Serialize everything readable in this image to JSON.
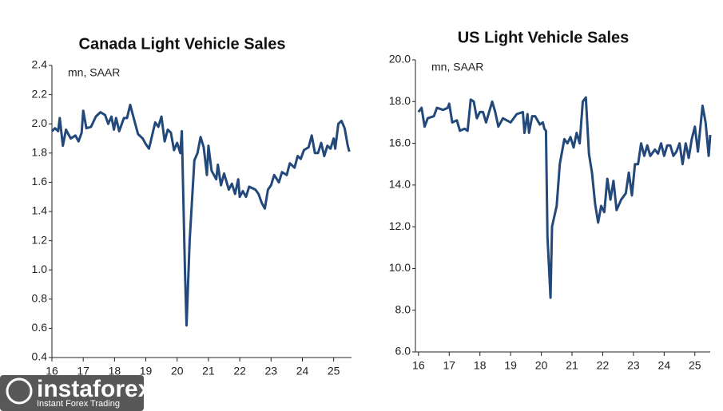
{
  "chart_data": [
    {
      "type": "line",
      "title": "Canada Light Vehicle Sales",
      "unit": "mn, SAAR",
      "color": "#23497a",
      "xlim": [
        16,
        25.57
      ],
      "xticks": [
        16,
        17,
        18,
        19,
        20,
        21,
        22,
        23,
        24,
        25
      ],
      "ylim": [
        0.4,
        2.4
      ],
      "yticks": [
        0.4,
        0.6,
        0.8,
        {
          "value": 1,
          "label": "1.0"
        },
        1.2,
        1.4,
        1.6,
        1.8,
        {
          "value": 2,
          "label": "2.0"
        },
        2.2,
        2.4
      ],
      "x": [
        16.0,
        16.1,
        16.2,
        16.25,
        16.35,
        16.45,
        16.6,
        16.75,
        16.85,
        16.95,
        17.0,
        17.1,
        17.25,
        17.4,
        17.55,
        17.7,
        17.8,
        17.9,
        17.98,
        18.05,
        18.15,
        18.3,
        18.4,
        18.5,
        18.65,
        18.75,
        18.9,
        19.0,
        19.1,
        19.2,
        19.3,
        19.4,
        19.5,
        19.6,
        19.7,
        19.8,
        19.9,
        20.0,
        20.1,
        20.15,
        20.25,
        20.3,
        20.4,
        20.55,
        20.65,
        20.75,
        20.85,
        20.95,
        21.0,
        21.1,
        21.25,
        21.3,
        21.4,
        21.5,
        21.65,
        21.75,
        21.85,
        21.95,
        22.0,
        22.1,
        22.2,
        22.3,
        22.5,
        22.6,
        22.7,
        22.8,
        22.9,
        23.0,
        23.1,
        23.25,
        23.35,
        23.5,
        23.6,
        23.75,
        23.85,
        23.95,
        24.05,
        24.2,
        24.3,
        24.4,
        24.5,
        24.6,
        24.7,
        24.8,
        24.9,
        25.0,
        25.05,
        25.15,
        25.25,
        25.35,
        25.45,
        25.5
      ],
      "values": [
        1.95,
        1.97,
        1.95,
        2.04,
        1.85,
        1.96,
        1.9,
        1.92,
        1.88,
        1.94,
        2.09,
        1.97,
        1.98,
        2.05,
        2.08,
        2.06,
        2.0,
        2.05,
        1.96,
        2.04,
        1.95,
        2.04,
        2.04,
        2.13,
        2.01,
        1.93,
        1.9,
        1.86,
        1.83,
        1.92,
        2.01,
        1.98,
        2.05,
        1.88,
        1.96,
        1.94,
        1.82,
        1.87,
        1.8,
        1.95,
        1.0,
        0.62,
        1.2,
        1.75,
        1.8,
        1.91,
        1.84,
        1.65,
        1.85,
        1.68,
        1.62,
        1.72,
        1.58,
        1.66,
        1.55,
        1.59,
        1.52,
        1.62,
        1.5,
        1.54,
        1.5,
        1.57,
        1.55,
        1.52,
        1.46,
        1.42,
        1.55,
        1.58,
        1.65,
        1.6,
        1.67,
        1.65,
        1.73,
        1.7,
        1.78,
        1.76,
        1.82,
        1.84,
        1.92,
        1.8,
        1.8,
        1.87,
        1.78,
        1.85,
        1.83,
        1.9,
        1.83,
        2.0,
        2.02,
        1.97,
        1.85,
        1.81
      ]
    },
    {
      "type": "line",
      "title": "US Light Vehicle Sales",
      "unit": "mn, SAAR",
      "color": "#23497a",
      "xlim": [
        15.9,
        25.5
      ],
      "xticks": [
        16,
        17,
        18,
        19,
        20,
        21,
        22,
        23,
        24,
        25
      ],
      "ylim": [
        6,
        20
      ],
      "yticks": [
        {
          "value": 6,
          "label": "6.0"
        },
        {
          "value": 8,
          "label": "8.0"
        },
        {
          "value": 10,
          "label": "10.0"
        },
        {
          "value": 12,
          "label": "12.0"
        },
        {
          "value": 14,
          "label": "14.0"
        },
        {
          "value": 16,
          "label": "16.0"
        },
        {
          "value": 18,
          "label": "18.0"
        },
        {
          "value": 20,
          "label": "20.0"
        }
      ],
      "x": [
        16.0,
        16.1,
        16.2,
        16.3,
        16.5,
        16.6,
        16.8,
        16.95,
        17.0,
        17.1,
        17.25,
        17.35,
        17.5,
        17.6,
        17.7,
        17.8,
        17.9,
        18.0,
        18.1,
        18.2,
        18.4,
        18.5,
        18.6,
        18.75,
        19.0,
        19.2,
        19.4,
        19.45,
        19.55,
        19.6,
        19.7,
        19.8,
        19.95,
        20.05,
        20.1,
        20.15,
        20.2,
        20.3,
        20.35,
        20.5,
        20.6,
        20.75,
        20.85,
        20.95,
        21.05,
        21.15,
        21.25,
        21.35,
        21.45,
        21.55,
        21.65,
        21.75,
        21.85,
        21.95,
        22.05,
        22.15,
        22.25,
        22.35,
        22.45,
        22.6,
        22.75,
        22.85,
        22.95,
        23.05,
        23.15,
        23.25,
        23.35,
        23.45,
        23.55,
        23.7,
        23.8,
        23.9,
        24.0,
        24.1,
        24.2,
        24.3,
        24.4,
        24.5,
        24.6,
        24.7,
        24.8,
        24.9,
        25.0,
        25.1,
        25.25,
        25.35,
        25.45,
        25.5
      ],
      "values": [
        17.5,
        17.7,
        16.8,
        17.2,
        17.3,
        17.7,
        17.6,
        17.7,
        17.9,
        17.0,
        17.1,
        16.6,
        16.7,
        16.6,
        18.1,
        18.0,
        17.2,
        17.5,
        17.5,
        17.0,
        18.0,
        17.5,
        16.8,
        17.2,
        17.0,
        17.4,
        17.5,
        16.5,
        17.4,
        16.5,
        17.3,
        17.3,
        16.9,
        17.0,
        16.7,
        16.6,
        11.5,
        8.6,
        12.0,
        13.0,
        15.0,
        16.2,
        16.0,
        16.3,
        15.8,
        16.5,
        16.0,
        18.0,
        18.2,
        15.5,
        14.6,
        13.1,
        12.2,
        13.0,
        12.7,
        14.3,
        13.3,
        14.2,
        12.8,
        13.3,
        13.6,
        14.6,
        13.5,
        15.0,
        15.0,
        16.0,
        15.4,
        15.9,
        15.4,
        15.7,
        15.5,
        16.0,
        15.4,
        15.9,
        15.9,
        15.4,
        15.6,
        16.0,
        15.0,
        16.0,
        15.3,
        16.2,
        16.8,
        15.6,
        17.8,
        17.0,
        15.4,
        16.4
      ]
    }
  ],
  "watermark": {
    "brand": "instaforex",
    "tagline": "Instant Forex Trading"
  }
}
